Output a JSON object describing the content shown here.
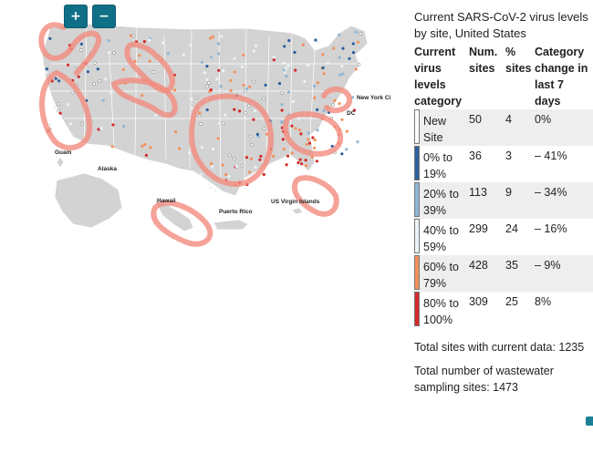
{
  "map": {
    "zoom_in_label": "+",
    "zoom_out_label": "−",
    "labels": {
      "new_york_city": "New York Ci",
      "dc": "DC",
      "guam": "Guam",
      "alaska": "Alaska",
      "hawaii": "Hawaii",
      "puerto_rico": "Puerto Rico",
      "us_virgin_islands": "US Virgin Islands"
    },
    "colors": {
      "land": "#d3d3d3",
      "border": "#ffffff",
      "annotation": "#f28c80"
    }
  },
  "legend": {
    "title": "Current SARS-CoV-2 virus levels by site, United States",
    "headers": {
      "category": "Current virus levels category",
      "num_sites": "Num. sites",
      "pct_sites": "% sites",
      "change": "Category change in last 7 days"
    },
    "rows": [
      {
        "category": "New Site",
        "num_sites": "50",
        "pct_sites": "4",
        "change": "0%",
        "color": "#ffffff"
      },
      {
        "category": "0% to 19%",
        "num_sites": "36",
        "pct_sites": "3",
        "change": "– 41%",
        "color": "#2c5f9e"
      },
      {
        "category": "20% to 39%",
        "num_sites": "113",
        "pct_sites": "9",
        "change": "– 34%",
        "color": "#8fb7d6"
      },
      {
        "category": "40% to 59%",
        "num_sites": "299",
        "pct_sites": "24",
        "change": "– 16%",
        "color": "#eaf3f8"
      },
      {
        "category": "60% to 79%",
        "num_sites": "428",
        "pct_sites": "35",
        "change": "– 9%",
        "color": "#f3915b"
      },
      {
        "category": "80% to 100%",
        "num_sites": "309",
        "pct_sites": "25",
        "change": "8%",
        "color": "#d42b2b"
      }
    ]
  },
  "totals": {
    "current": "Total sites with current data: 1235",
    "sampling": "Total number of wastewater sampling sites: 1473"
  }
}
